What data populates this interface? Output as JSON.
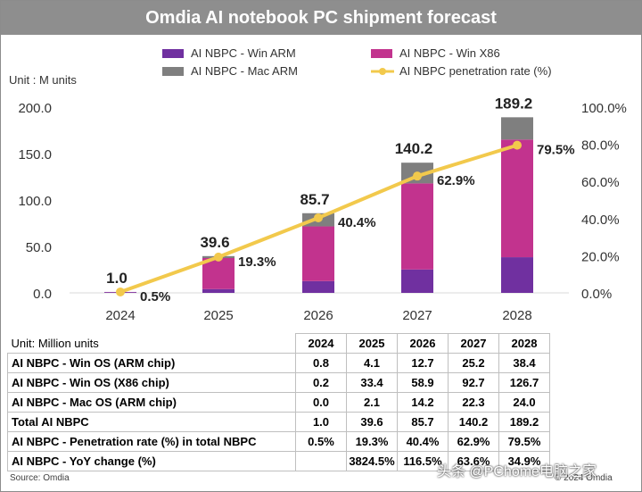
{
  "title": "Omdia AI notebook PC shipment forecast",
  "chart_data": {
    "type": "bar",
    "stacked": true,
    "unit_label": "Unit : M units",
    "categories": [
      "2024",
      "2025",
      "2026",
      "2027",
      "2028"
    ],
    "series": [
      {
        "name": "AI NBPC - Win ARM",
        "color": "#7030a0",
        "values": [
          0.8,
          4.1,
          12.7,
          25.2,
          38.4
        ]
      },
      {
        "name": "AI NBPC - Win X86",
        "color": "#c2338e",
        "values": [
          0.2,
          33.4,
          58.9,
          92.7,
          126.7
        ]
      },
      {
        "name": "AI NBPC - Mac ARM",
        "color": "#7f7f7f",
        "values": [
          0.0,
          2.1,
          14.2,
          22.3,
          24.0
        ]
      }
    ],
    "line": {
      "name": "AI NBPC penetration rate (%)",
      "color": "#f2c94c",
      "values": [
        0.5,
        19.3,
        40.4,
        62.9,
        79.5
      ],
      "labels": [
        "0.5%",
        "19.3%",
        "40.4%",
        "62.9%",
        "79.5%"
      ]
    },
    "totals": [
      "1.0",
      "39.6",
      "85.7",
      "140.2",
      "189.2"
    ],
    "ylim": [
      0,
      200
    ],
    "y_ticks": [
      "0.0",
      "50.0",
      "100.0",
      "150.0",
      "200.0"
    ],
    "y2lim": [
      0,
      100
    ],
    "y2_ticks": [
      "0.0%",
      "20.0%",
      "40.0%",
      "60.0%",
      "80.0%",
      "100.0%"
    ],
    "legend_position": "top"
  },
  "table": {
    "unit_label": "Unit: Million units",
    "years": [
      "2024",
      "2025",
      "2026",
      "2027",
      "2028"
    ],
    "rows": [
      {
        "label": "AI NBPC - Win OS (ARM chip)",
        "values": [
          "0.8",
          "4.1",
          "12.7",
          "25.2",
          "38.4"
        ]
      },
      {
        "label": "AI NBPC - Win OS (X86 chip)",
        "values": [
          "0.2",
          "33.4",
          "58.9",
          "92.7",
          "126.7"
        ]
      },
      {
        "label": "AI NBPC - Mac OS (ARM chip)",
        "values": [
          "0.0",
          "2.1",
          "14.2",
          "22.3",
          "24.0"
        ]
      },
      {
        "label": "Total AI NBPC",
        "values": [
          "1.0",
          "39.6",
          "85.7",
          "140.2",
          "189.2"
        ]
      },
      {
        "label": "AI NBPC - Penetration rate (%) in total NBPC",
        "values": [
          "0.5%",
          "19.3%",
          "40.4%",
          "62.9%",
          "79.5%"
        ]
      },
      {
        "label": "AI NBPC - YoY change (%)",
        "values": [
          "",
          "3824.5%",
          "116.5%",
          "63.6%",
          "34.9%"
        ]
      }
    ]
  },
  "source": "Source: Omdia",
  "copyright": "© 2024 Omdia",
  "watermark": "头条 @PChome电脑之家"
}
